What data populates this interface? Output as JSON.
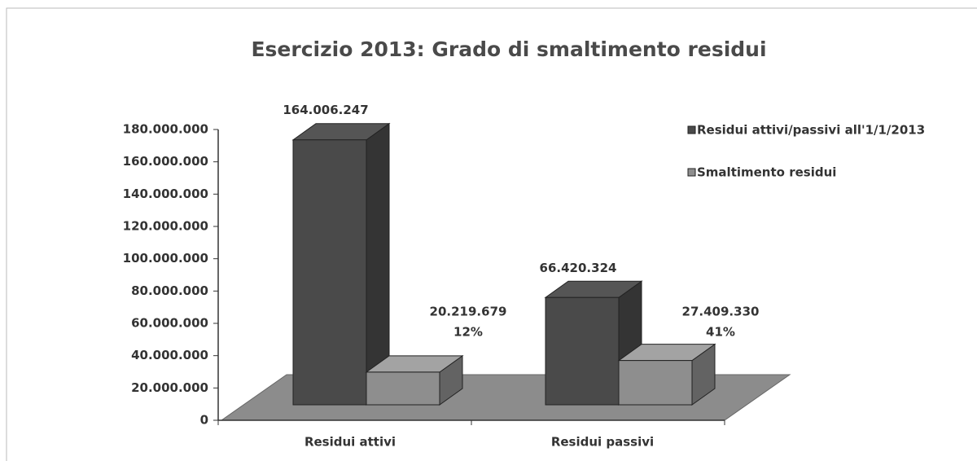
{
  "chart_data": {
    "type": "bar3d",
    "title": "Esercizio 2013: Grado di smaltimento residui",
    "categories": [
      "Residui attivi",
      "Residui passivi"
    ],
    "series": [
      {
        "name": "Residui attivi/passivi all'1/1/2013",
        "color": "#4a4a4a",
        "values": [
          164006247,
          66420324
        ],
        "value_labels": [
          "164.006.247",
          "66.420.324"
        ]
      },
      {
        "name": "Smaltimento residui",
        "color": "#8e8e8e",
        "values": [
          20219679,
          27409330
        ],
        "value_labels": [
          "20.219.679",
          "27.409.330"
        ],
        "share_labels": [
          "12%",
          "41%"
        ]
      }
    ],
    "ylim": [
      0,
      180000000
    ],
    "yticks": [
      0,
      {
        "value": 20000000,
        "label": "20.000.000"
      },
      {
        "value": 40000000,
        "label": "40.000.000"
      },
      {
        "value": 60000000,
        "label": "60.000.000"
      },
      {
        "value": 80000000,
        "label": "80.000.000"
      },
      {
        "value": 100000000,
        "label": "100.000.000"
      },
      {
        "value": 120000000,
        "label": "120.000.000"
      },
      {
        "value": 140000000,
        "label": "140.000.000"
      },
      {
        "value": 160000000,
        "label": "160.000.000"
      },
      {
        "value": 180000000,
        "label": "180.000.000"
      }
    ],
    "legend": "top-right"
  }
}
